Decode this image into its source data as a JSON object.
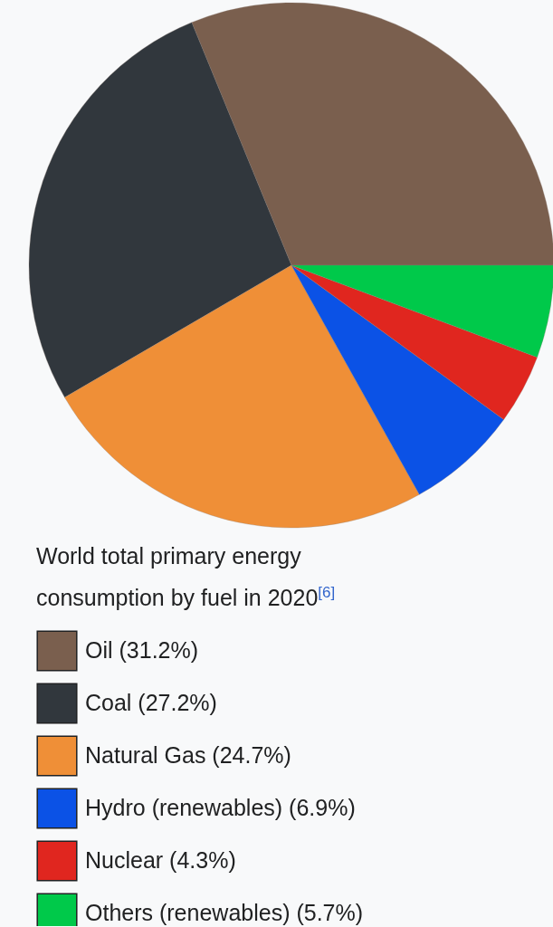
{
  "chart_data": {
    "type": "pie",
    "title": "World total primary energy consumption by fuel in 2020$^{[6]}$",
    "categories": [
      "Oil (31.2%)",
      "Coal (27.2%)",
      "Natural Gas (24.7%)",
      "Hydro (renewables) (6.9%)",
      "Nuclear (4.3%)",
      "Others (renewables) (5.7%)"
    ],
    "values": [
      31.2,
      27.2,
      24.7,
      6.9,
      4.3,
      5.7
    ],
    "colors": [
      "#7a5f4e",
      "#31373d",
      "#ef8f37",
      "#0b52e6",
      "#e0261f",
      "#00c94a"
    ],
    "legend": "bottom"
  }
}
